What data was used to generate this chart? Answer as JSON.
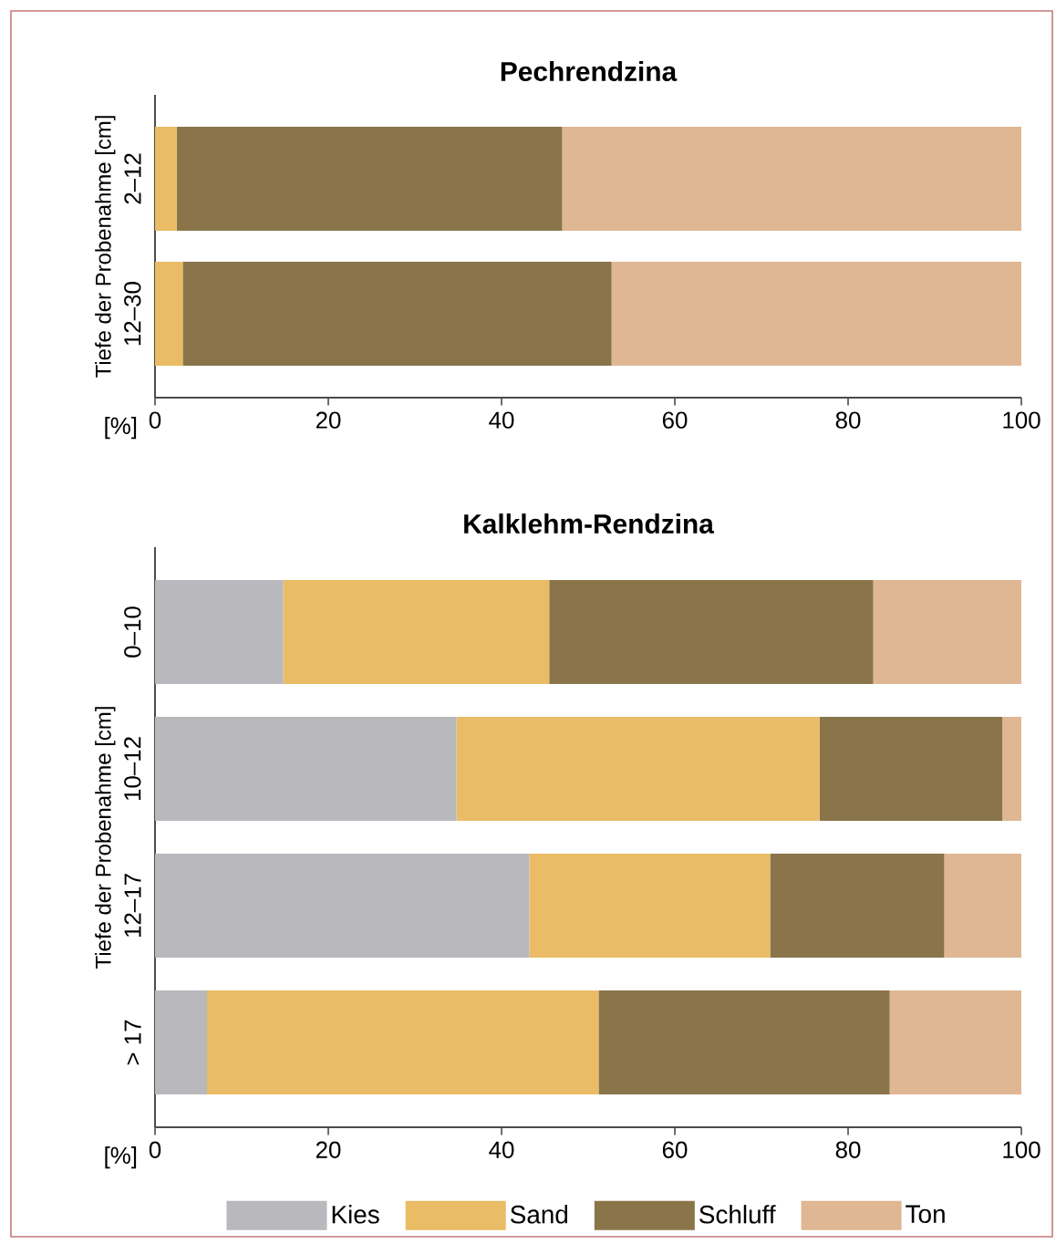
{
  "chart_data": [
    {
      "type": "bar",
      "orientation": "horizontal",
      "stacked": true,
      "title": "Pechrendzina",
      "ylabel": "Tiefe der Probenahme [cm]",
      "xlabel": "[%]",
      "categories": [
        "2–12",
        "12–30"
      ],
      "series": [
        {
          "color": "#e9bc65",
          "values": [
            2.5,
            3.2
          ]
        },
        {
          "color": "#8a7449",
          "values": [
            44.5,
            49.5
          ]
        },
        {
          "color": "#dfb793",
          "values": [
            53.0,
            47.3
          ]
        }
      ],
      "xlim": [
        0,
        100
      ],
      "xticks": [
        0,
        20,
        40,
        60,
        80,
        100
      ],
      "legend": false
    },
    {
      "type": "bar",
      "orientation": "horizontal",
      "stacked": true,
      "title": "Kalklehm-Rendzina",
      "ylabel": "Tiefe der Probenahme [cm]",
      "xlabel": "[%]",
      "categories": [
        "0–10",
        "10–12",
        "12–17",
        "> 17"
      ],
      "series": [
        {
          "name": "Kies",
          "color": "#b9b8bd",
          "values": [
            14.8,
            34.8,
            43.2,
            6.0
          ]
        },
        {
          "name": "Sand",
          "color": "#e9bc65",
          "values": [
            30.7,
            41.9,
            27.8,
            45.2
          ]
        },
        {
          "name": "Schluff",
          "color": "#8a7449",
          "values": [
            37.4,
            21.1,
            20.1,
            33.6
          ]
        },
        {
          "name": "Ton",
          "color": "#dfb793",
          "values": [
            17.1,
            2.2,
            8.9,
            15.2
          ]
        }
      ],
      "xlim": [
        0,
        100
      ],
      "xticks": [
        0,
        20,
        40,
        60,
        80,
        100
      ],
      "legend": "bottom"
    }
  ]
}
